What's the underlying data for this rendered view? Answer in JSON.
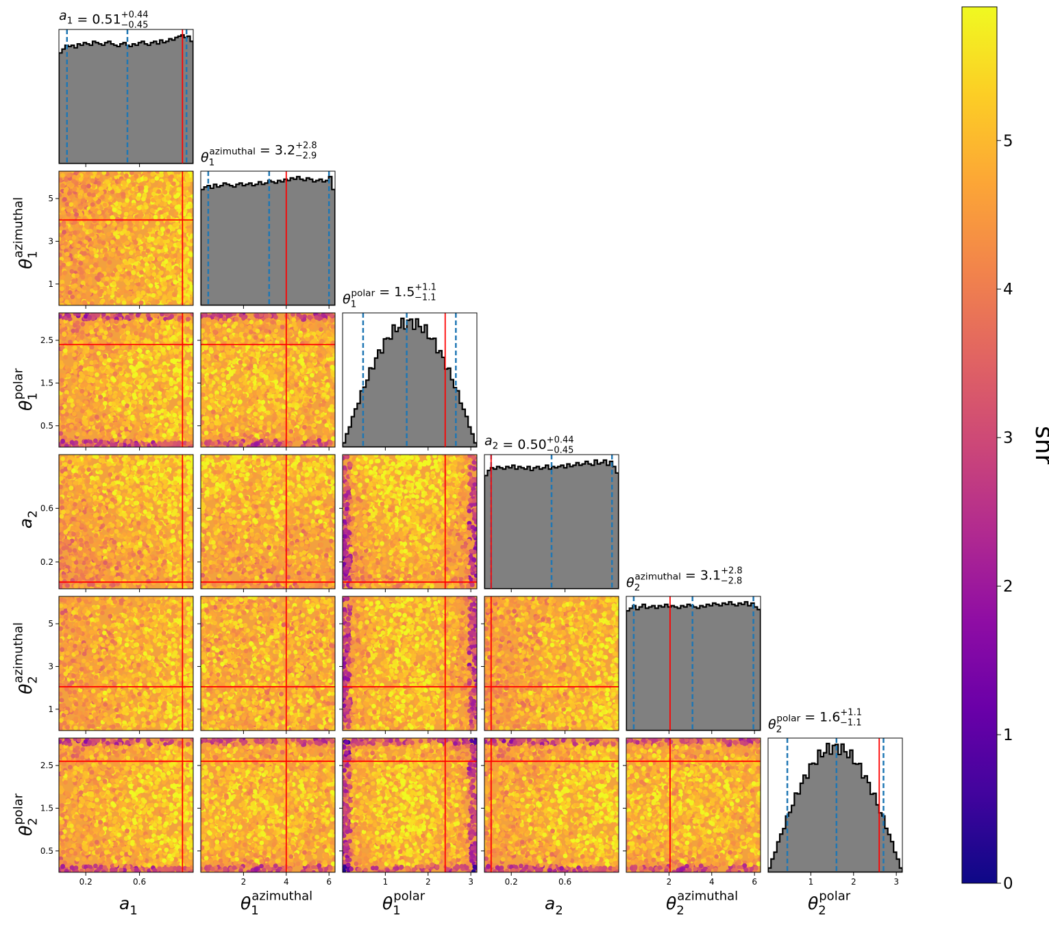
{
  "chart_data": {
    "type": "corner",
    "parameters": [
      {
        "symbol": "a",
        "sub": "1",
        "sup": "",
        "range": [
          0,
          1
        ],
        "ticks": [
          0.2,
          0.6
        ],
        "tick_labels": [
          "0.2",
          "0.6"
        ],
        "truth": 0.92,
        "median": 0.51,
        "plus": "0.44",
        "minus": "0.45",
        "median_label": "0.51",
        "q_low": 0.06,
        "q_high": 0.95,
        "hist": [
          0.86,
          0.89,
          0.92,
          0.91,
          0.92,
          0.9,
          0.93,
          0.92,
          0.94,
          0.93,
          0.92,
          0.95,
          0.94,
          0.93,
          0.92,
          0.94,
          0.95,
          0.93,
          0.92,
          0.91,
          0.93,
          0.94,
          0.92,
          0.91,
          0.93,
          0.92,
          0.94,
          0.95,
          0.93,
          0.92,
          0.94,
          0.95,
          0.93,
          0.96,
          0.94,
          0.95,
          0.97,
          0.96,
          0.98,
          0.99,
          1.0,
          0.98,
          0.99,
          0.95
        ]
      },
      {
        "symbol": "θ",
        "sub": "1",
        "sup": "azimuthal",
        "range": [
          0,
          6.283
        ],
        "ticks": [
          2,
          4,
          6
        ],
        "tick_labels": [
          "2",
          "4",
          "6"
        ],
        "truth": 4.0,
        "median": 3.2,
        "plus": "2.8",
        "minus": "2.9",
        "median_label": "3.2",
        "q_low": 0.35,
        "q_high": 6.0,
        "hist": [
          0.9,
          0.92,
          0.93,
          0.91,
          0.94,
          0.92,
          0.93,
          0.95,
          0.94,
          0.93,
          0.92,
          0.94,
          0.95,
          0.93,
          0.94,
          0.95,
          0.93,
          0.94,
          0.96,
          0.94,
          0.95,
          0.97,
          0.96,
          0.95,
          0.97,
          0.96,
          0.98,
          0.97,
          0.99,
          0.98,
          1.0,
          0.98,
          0.97,
          0.99,
          0.98,
          0.96,
          0.97,
          0.98,
          0.96,
          0.97,
          1.0,
          0.9
        ]
      },
      {
        "symbol": "θ",
        "sub": "1",
        "sup": "polar",
        "range": [
          0,
          3.1416
        ],
        "ticks": [
          1,
          2,
          3
        ],
        "tick_labels": [
          "1",
          "2",
          "3"
        ],
        "truth": 2.4,
        "median": 1.5,
        "plus": "1.1",
        "minus": "1.1",
        "median_label": "1.5",
        "q_low": 0.48,
        "q_high": 2.65,
        "yticks": [
          0.5,
          1.5,
          2.5
        ],
        "ytick_labels": [
          "0.5",
          "1.5",
          "2.5"
        ]
      },
      {
        "symbol": "a",
        "sub": "2",
        "sup": "",
        "range": [
          0,
          1
        ],
        "ticks": [
          0.2,
          0.6
        ],
        "tick_labels": [
          "0.2",
          "0.6"
        ],
        "truth": 0.05,
        "median": 0.5,
        "plus": "0.44",
        "minus": "0.45",
        "median_label": "0.50",
        "q_low": 0.05,
        "q_high": 0.95,
        "hist": [
          0.88,
          0.92,
          0.94,
          0.93,
          0.95,
          0.94,
          0.93,
          0.95,
          0.94,
          0.96,
          0.93,
          0.95,
          0.94,
          0.93,
          0.95,
          0.92,
          0.94,
          0.95,
          0.93,
          0.94,
          0.96,
          0.93,
          0.95,
          0.94,
          0.95,
          0.96,
          0.94,
          0.97,
          0.95,
          0.96,
          0.98,
          0.96,
          0.97,
          0.99,
          0.97,
          0.96,
          1.0,
          0.97,
          0.98,
          1.0,
          0.96,
          0.99,
          0.95,
          0.9
        ]
      },
      {
        "symbol": "θ",
        "sub": "2",
        "sup": "azimuthal",
        "range": [
          0,
          6.283
        ],
        "ticks": [
          2,
          4,
          6
        ],
        "tick_labels": [
          "2",
          "4",
          "6"
        ],
        "truth": 2.05,
        "median": 3.1,
        "plus": "2.8",
        "minus": "2.8",
        "median_label": "3.1",
        "q_low": 0.35,
        "q_high": 5.95,
        "hist": [
          0.93,
          0.95,
          0.97,
          0.94,
          0.96,
          0.98,
          0.95,
          0.96,
          0.97,
          0.95,
          0.97,
          0.96,
          0.98,
          0.96,
          0.97,
          0.96,
          0.95,
          0.97,
          0.96,
          0.98,
          0.97,
          0.96,
          0.95,
          0.97,
          0.96,
          0.98,
          0.97,
          0.99,
          0.98,
          0.97,
          0.99,
          0.98,
          1.0,
          0.98,
          0.97,
          0.99,
          0.98,
          1.0,
          0.97,
          0.99,
          0.96,
          0.94
        ]
      },
      {
        "symbol": "θ",
        "sub": "2",
        "sup": "polar",
        "range": [
          0,
          3.1416
        ],
        "ticks": [
          1,
          2,
          3
        ],
        "tick_labels": [
          "1",
          "2",
          "3"
        ],
        "truth": 2.6,
        "median": 1.6,
        "plus": "1.1",
        "minus": "1.1",
        "median_label": "1.6",
        "q_low": 0.45,
        "q_high": 2.7,
        "yticks": [
          0.5,
          1.5,
          2.5
        ],
        "ytick_labels": [
          "0.5",
          "1.5",
          "2.5"
        ]
      }
    ],
    "colorbar": {
      "label": "snr",
      "min": 0,
      "max": 5.9,
      "ticks": [
        0,
        1,
        2,
        3,
        4,
        5
      ],
      "tick_labels": [
        "0",
        "1",
        "2",
        "3",
        "4",
        "5"
      ],
      "colormap": "plasma"
    },
    "style": {
      "hist_fill": "#808080",
      "hist_edge": "#000000",
      "truth_color": "#ff0000",
      "quantile_color": "#1f77b4"
    }
  }
}
